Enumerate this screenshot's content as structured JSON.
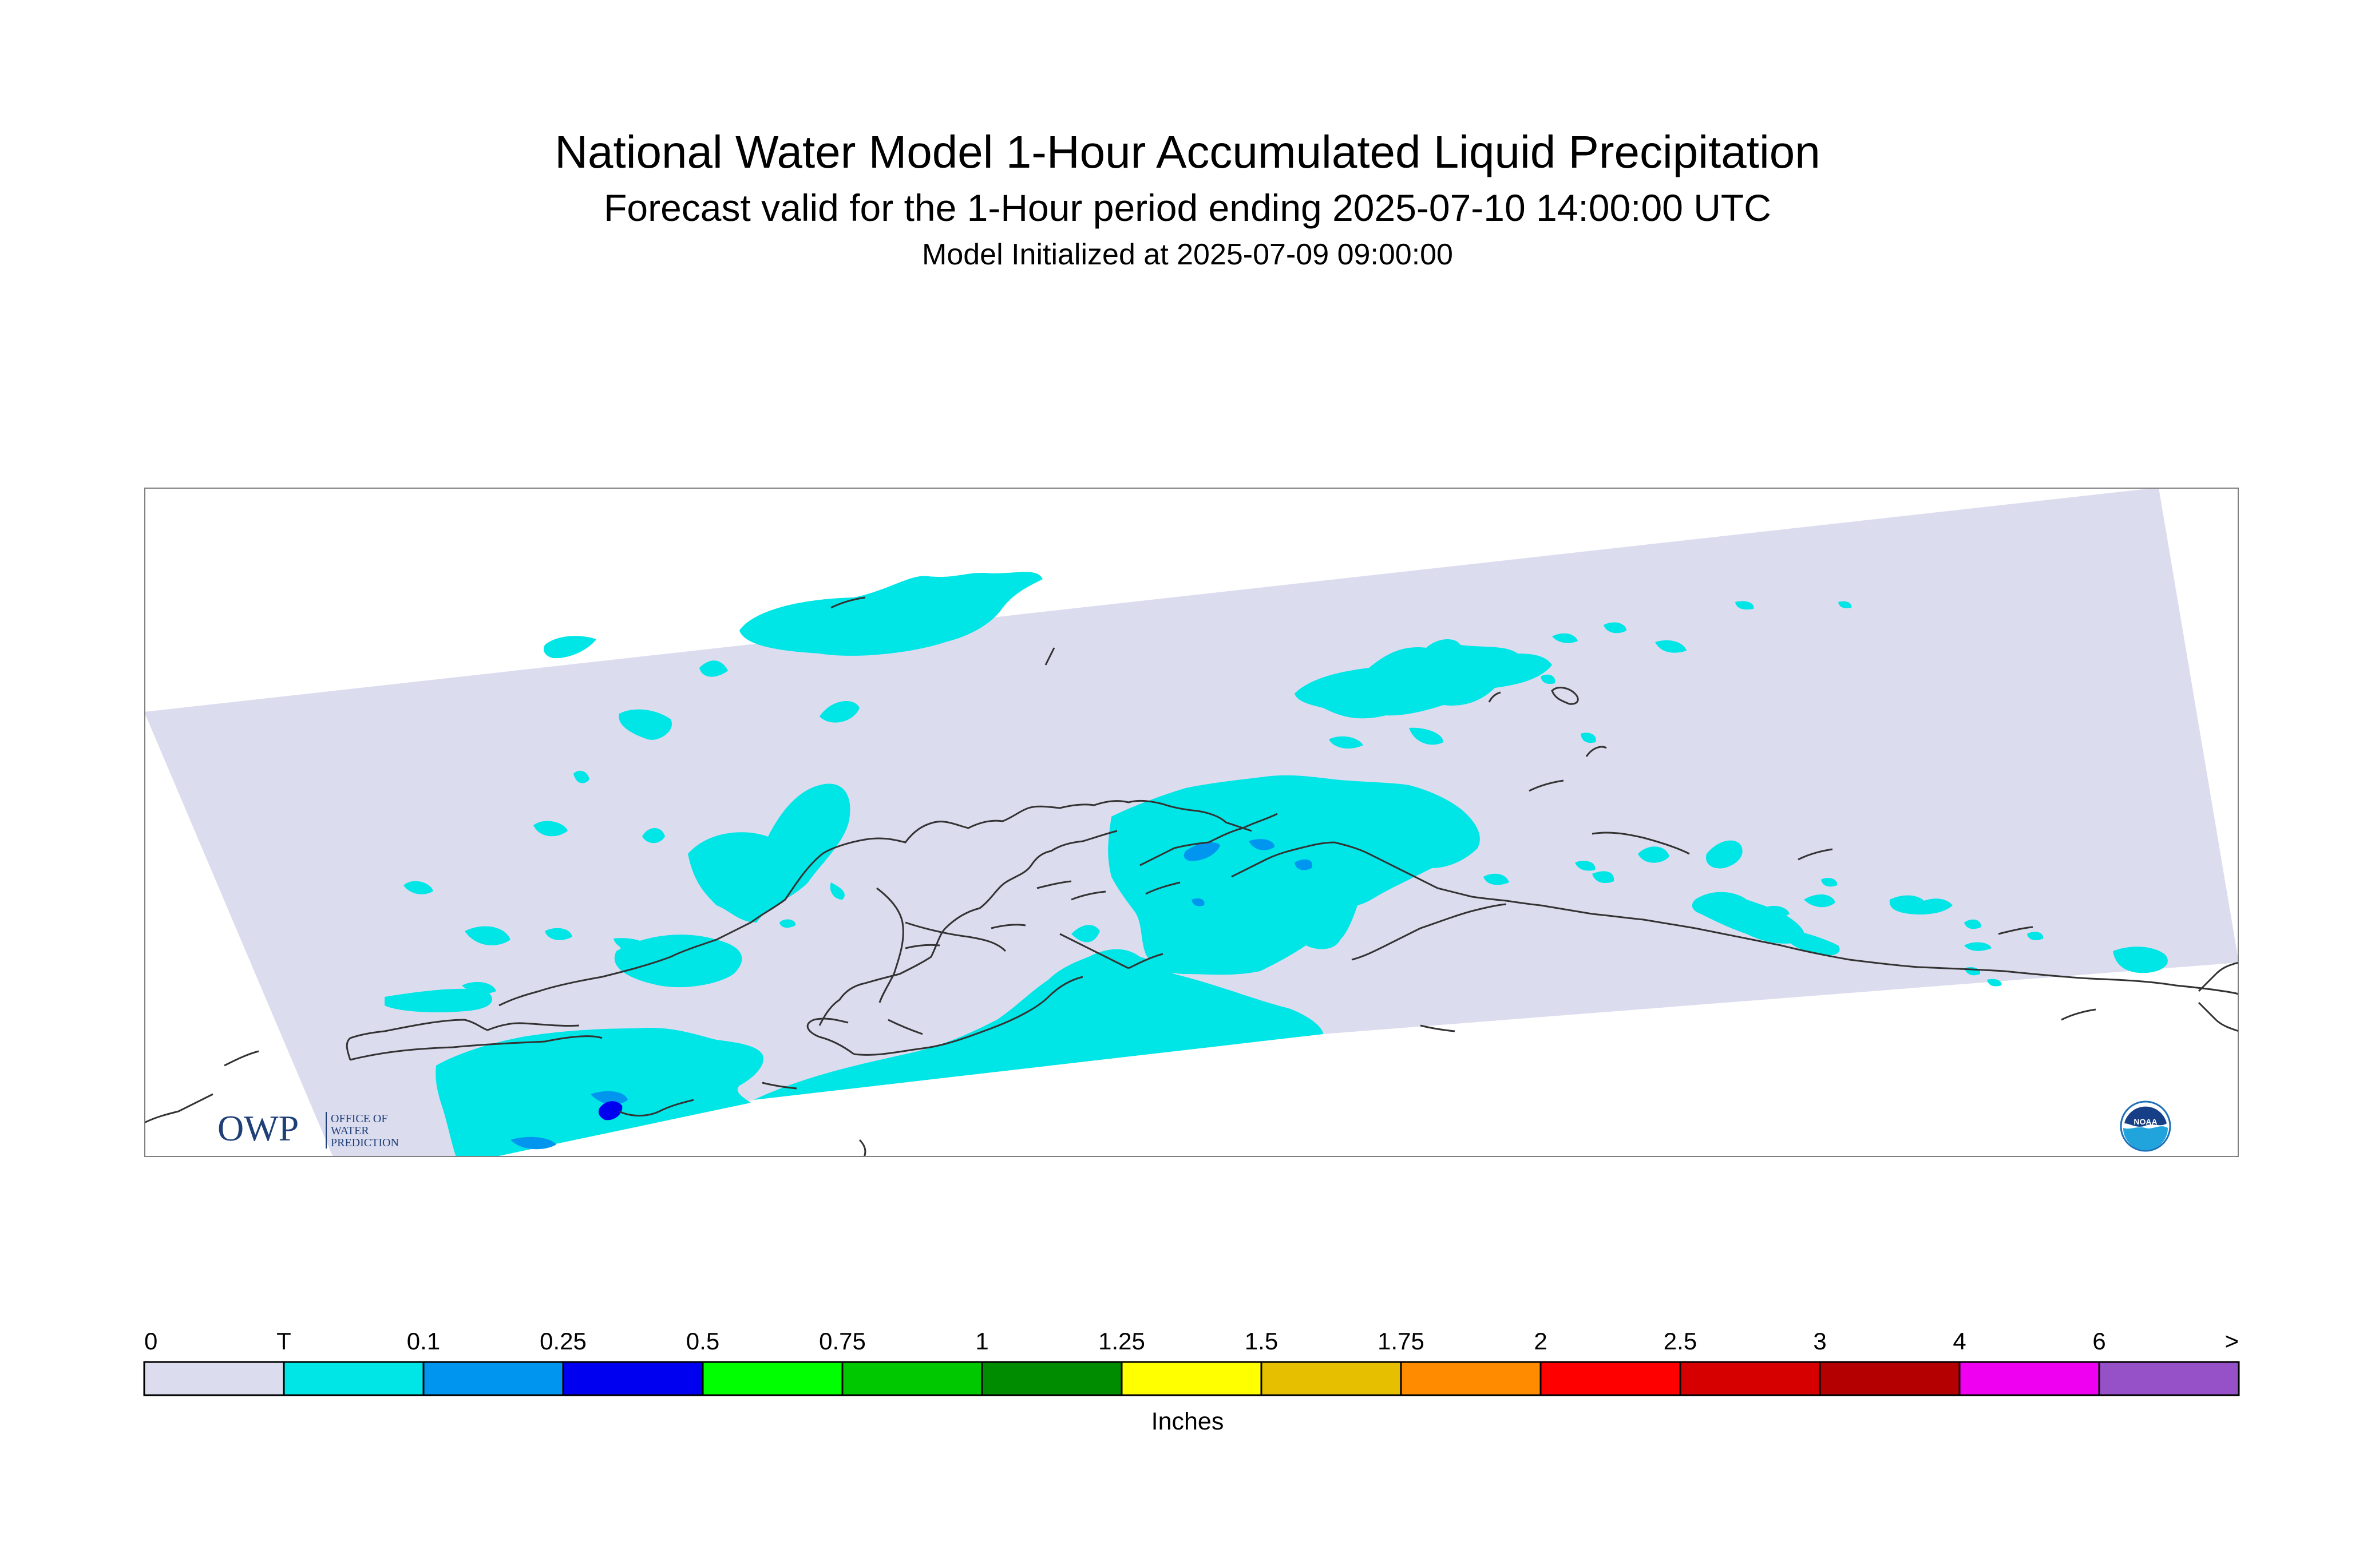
{
  "header": {
    "title": "National Water Model 1-Hour Accumulated Liquid Precipitation",
    "subtitle": "Forecast valid for the 1-Hour period ending 2025-07-10 14:00:00 UTC",
    "init_line": "Model Initialized at 2025-07-09 09:00:00"
  },
  "legend": {
    "labels": [
      "0",
      "T",
      "0.1",
      "0.25",
      "0.5",
      "0.75",
      "1",
      "1.25",
      "1.5",
      "1.75",
      "2",
      "2.5",
      "3",
      "4",
      "6",
      ">"
    ],
    "colors": [
      "#dcdcef",
      "#00e5e5",
      "#0096ef",
      "#0000f0",
      "#00ff00",
      "#00c800",
      "#008c00",
      "#ffff00",
      "#e5bf00",
      "#ff8c00",
      "#ff0000",
      "#d70000",
      "#b40000",
      "#f000f0",
      "#9650c8"
    ],
    "units": "Inches"
  },
  "map": {
    "domain_fill": "#dcdcef",
    "trace_color": "#00e5e5",
    "light_color": "#0096ef",
    "moderate_color": "#0000f0",
    "coastline_color": "#333333"
  },
  "logos": {
    "owp": {
      "text": "OWP",
      "sub_lines": [
        "OFFICE OF",
        "WATER",
        "PREDICTION"
      ]
    },
    "noaa": {
      "text": "NOAA"
    }
  }
}
